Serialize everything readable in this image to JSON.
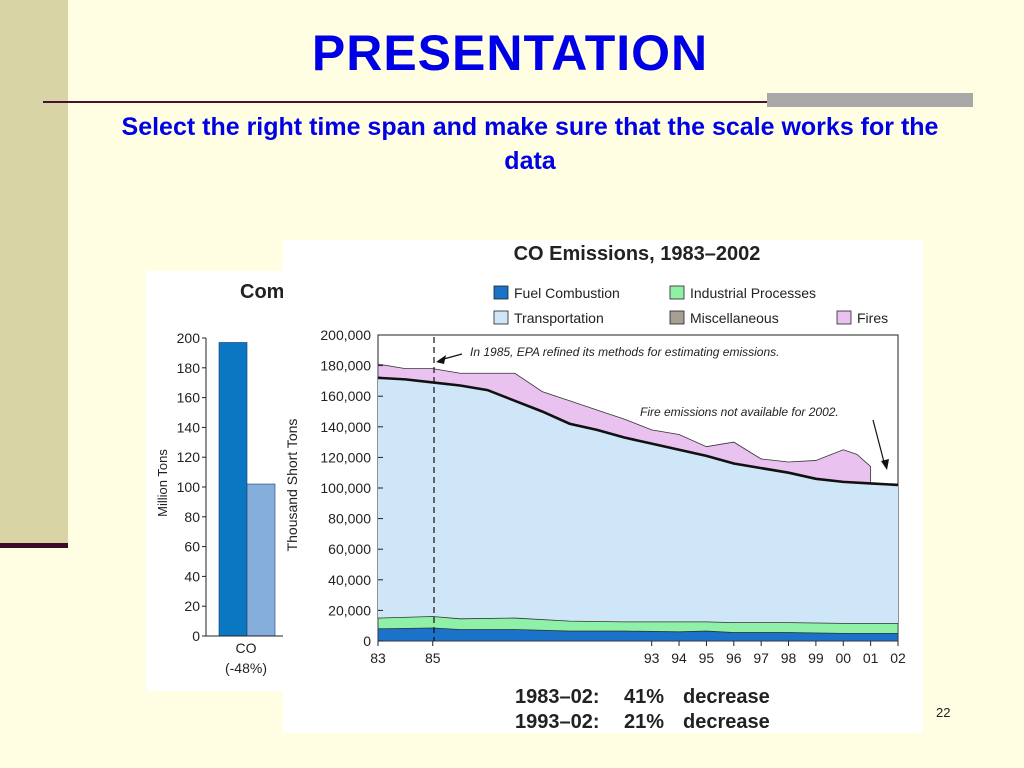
{
  "slide": {
    "title": "PRESENTATION",
    "subtitle": "Select the right time span and make sure that the scale works for the data",
    "page_number": "22"
  },
  "chart_data": [
    {
      "type": "bar",
      "title": "Com",
      "ylabel": "Million Tons",
      "ylim": [
        0,
        200
      ],
      "yticks": [
        "0",
        "20",
        "40",
        "60",
        "80",
        "100",
        "120",
        "140",
        "160",
        "180",
        "200"
      ],
      "category_label": "CO",
      "category_sublabel": "(-48%)",
      "values": [
        197,
        102
      ],
      "colors": [
        "#0b76c1",
        "#86aedc"
      ]
    },
    {
      "type": "area",
      "title": "CO Emissions, 1983–2002",
      "ylabel": "Thousand Short Tons",
      "ylim": [
        0,
        200000
      ],
      "xlim": [
        1983,
        2002
      ],
      "yticks": [
        "0",
        "20,000",
        "40,000",
        "60,000",
        "80,000",
        "100,000",
        "120,000",
        "140,000",
        "160,000",
        "180,000",
        "200,000"
      ],
      "xticks": [
        {
          "year": 1983,
          "label": "83"
        },
        {
          "year": 1985,
          "label": "85"
        },
        {
          "year": 1993,
          "label": "93"
        },
        {
          "year": 1994,
          "label": "94"
        },
        {
          "year": 1995,
          "label": "95"
        },
        {
          "year": 1996,
          "label": "96"
        },
        {
          "year": 1997,
          "label": "97"
        },
        {
          "year": 1998,
          "label": "98"
        },
        {
          "year": 1999,
          "label": "99"
        },
        {
          "year": 2000,
          "label": "00"
        },
        {
          "year": 2001,
          "label": "01"
        },
        {
          "year": 2002,
          "label": "02"
        }
      ],
      "legend": [
        {
          "name": "Fuel Combustion",
          "color": "#1a73c8"
        },
        {
          "name": "Industrial Processes",
          "color": "#8ff0a8"
        },
        {
          "name": "Transportation",
          "color": "#cfe6f8"
        },
        {
          "name": "Miscellaneous",
          "color": "#a79e92"
        },
        {
          "name": "Fires",
          "color": "#e9c2f0"
        }
      ],
      "series": [
        {
          "name": "Fuel Combustion",
          "x": [
            1983,
            1985,
            1986,
            1988,
            1990,
            1992,
            1994,
            1995,
            1996,
            1998,
            2000,
            2002
          ],
          "values": [
            8000,
            8500,
            7500,
            7500,
            6500,
            6500,
            6000,
            6500,
            5500,
            5500,
            5000,
            5000
          ]
        },
        {
          "name": "Industrial Processes",
          "x": [
            1983,
            1985,
            1986,
            1988,
            1990,
            1992,
            1994,
            1995,
            1996,
            1998,
            2000,
            2002
          ],
          "values": [
            7000,
            7500,
            7000,
            7500,
            6500,
            6000,
            6500,
            6000,
            6500,
            6500,
            6500,
            6500
          ]
        },
        {
          "name": "Transportation + Miscellaneous (cumulative top)",
          "x": [
            1983,
            1984,
            1985,
            1986,
            1987,
            1988,
            1989,
            1990,
            1991,
            1992,
            1993,
            1994,
            1995,
            1996,
            1997,
            1998,
            1999,
            2000,
            2001,
            2002
          ],
          "values": [
            172000,
            171000,
            169000,
            167000,
            164000,
            157000,
            150000,
            142000,
            138000,
            133000,
            129000,
            125000,
            121000,
            116000,
            113000,
            110000,
            106000,
            104000,
            103000,
            102000
          ]
        },
        {
          "name": "Fires (cumulative top)",
          "x": [
            1983,
            1984,
            1985,
            1986,
            1987,
            1988,
            1989,
            1990,
            1991,
            1992,
            1993,
            1994,
            1995,
            1996,
            1997,
            1998,
            1999,
            2000,
            2000.5,
            2001
          ],
          "values": [
            181000,
            178000,
            178000,
            175000,
            175000,
            175000,
            163000,
            157000,
            151000,
            145000,
            138000,
            135000,
            127000,
            130000,
            119000,
            117000,
            118000,
            125000,
            122000,
            114000
          ]
        }
      ],
      "annotations": [
        "In 1985, EPA refined its methods for estimating emissions.",
        "Fire emissions not available for 2002."
      ],
      "summary": [
        {
          "period": "1983–02:",
          "percent": "41%",
          "label": "decrease"
        },
        {
          "period": "1993–02:",
          "percent": "21%",
          "label": "decrease"
        }
      ]
    }
  ]
}
